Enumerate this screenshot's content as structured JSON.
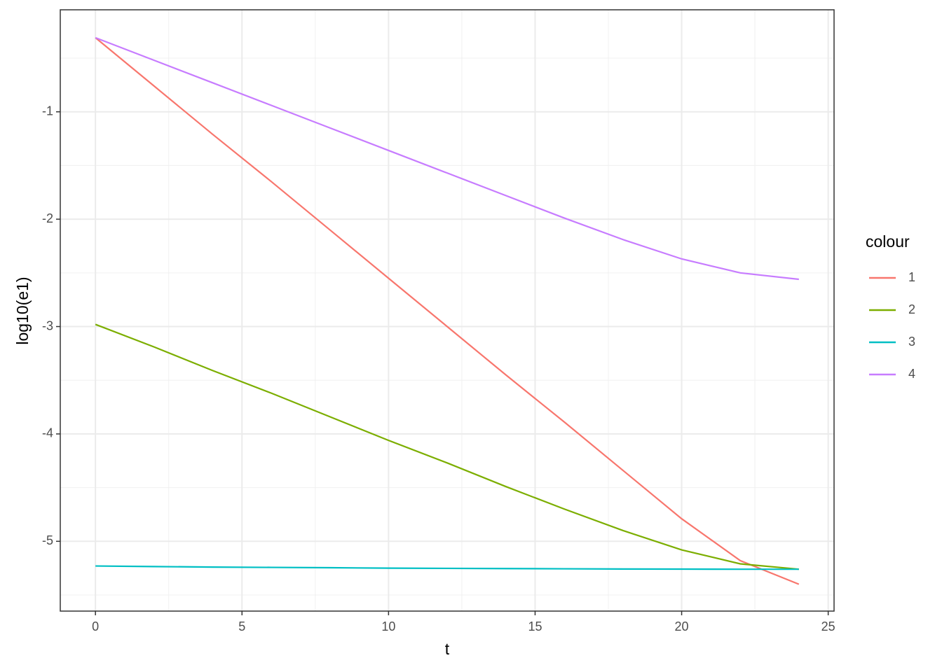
{
  "chart_data": {
    "type": "line",
    "x_label": "t",
    "y_label": "log10(e1)",
    "x": [
      0,
      2,
      4,
      6,
      8,
      10,
      12,
      14,
      16,
      18,
      20,
      22,
      24
    ],
    "series": [
      {
        "name": "1",
        "color": "#F8766D",
        "values": [
          -0.31,
          -0.76,
          -1.21,
          -1.65,
          -2.1,
          -2.55,
          -3.0,
          -3.45,
          -3.89,
          -4.34,
          -4.79,
          -5.18,
          -5.4
        ]
      },
      {
        "name": "2",
        "color": "#7CAE00",
        "values": [
          -2.98,
          -3.19,
          -3.41,
          -3.62,
          -3.84,
          -4.06,
          -4.27,
          -4.49,
          -4.7,
          -4.9,
          -5.08,
          -5.21,
          -5.26
        ]
      },
      {
        "name": "3",
        "color": "#00BFC4",
        "values": [
          -5.23,
          -5.235,
          -5.24,
          -5.243,
          -5.246,
          -5.25,
          -5.252,
          -5.254,
          -5.256,
          -5.258,
          -5.259,
          -5.26,
          -5.26
        ]
      },
      {
        "name": "4",
        "color": "#C77CFF",
        "values": [
          -0.31,
          -0.52,
          -0.73,
          -0.94,
          -1.15,
          -1.36,
          -1.57,
          -1.78,
          -1.99,
          -2.19,
          -2.37,
          -2.5,
          -2.56
        ]
      }
    ],
    "legend_title": "colour",
    "xlim": [
      -1.2,
      25.2
    ],
    "xticks": [
      0,
      5,
      10,
      15,
      20,
      25
    ],
    "ylim": [
      -5.65,
      -0.05
    ],
    "yticks": [
      -1,
      -2,
      -3,
      -4,
      -5
    ],
    "grid": true,
    "legend_position": "right"
  }
}
